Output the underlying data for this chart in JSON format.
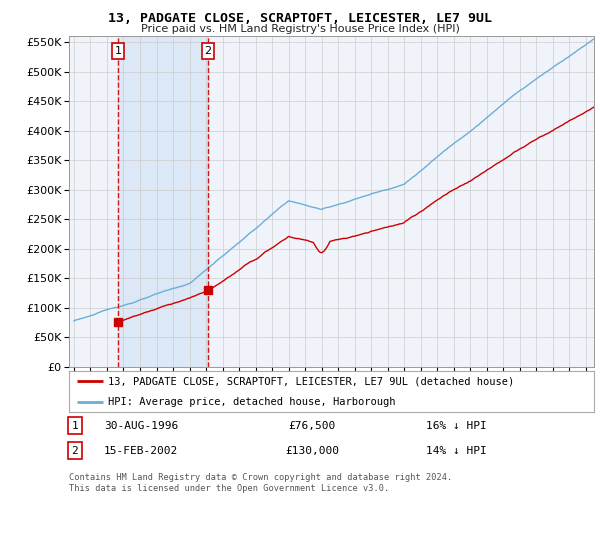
{
  "title": "13, PADGATE CLOSE, SCRAPTOFT, LEICESTER, LE7 9UL",
  "subtitle": "Price paid vs. HM Land Registry's House Price Index (HPI)",
  "legend_line1": "13, PADGATE CLOSE, SCRAPTOFT, LEICESTER, LE7 9UL (detached house)",
  "legend_line2": "HPI: Average price, detached house, Harborough",
  "footer": "Contains HM Land Registry data © Crown copyright and database right 2024.\nThis data is licensed under the Open Government Licence v3.0.",
  "sale1_date": "30-AUG-1996",
  "sale1_price": 76500,
  "sale1_label": "16% ↓ HPI",
  "sale2_date": "15-FEB-2002",
  "sale2_price": 130000,
  "sale2_label": "14% ↓ HPI",
  "ylim": [
    0,
    560000
  ],
  "yticks": [
    0,
    50000,
    100000,
    150000,
    200000,
    250000,
    300000,
    350000,
    400000,
    450000,
    500000,
    550000
  ],
  "hpi_color": "#6baed6",
  "price_color": "#cc0000",
  "vline_color": "#cc0000",
  "grid_color": "#cccccc",
  "bg_color": "#ffffff",
  "plot_bg": "#f0f4fa",
  "hatch_region_color": "#dce8f5",
  "sale1_x": 1996.67,
  "sale2_x": 2002.12,
  "xmin": 1994,
  "xmax": 2025.5
}
